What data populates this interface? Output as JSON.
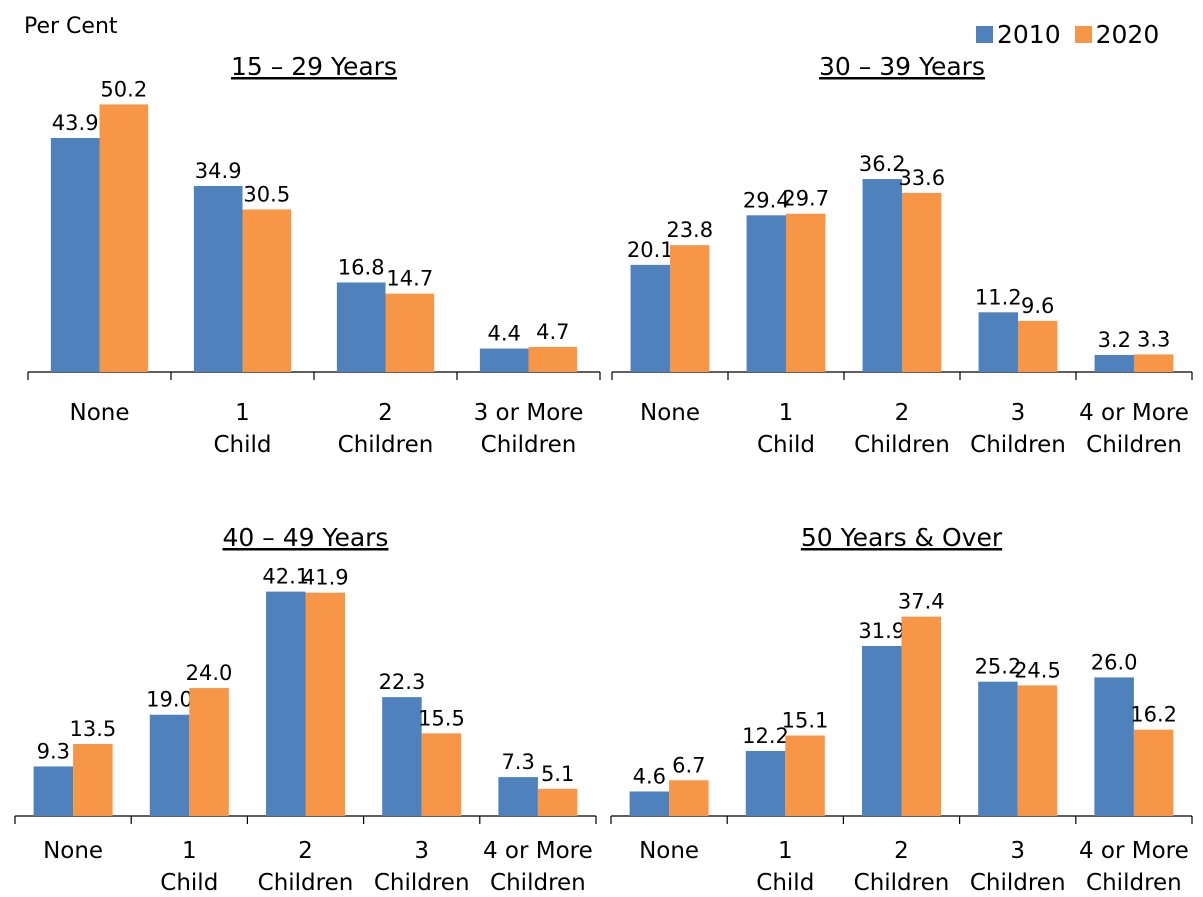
{
  "y_axis_label": "Per Cent",
  "legend": [
    {
      "label": "2010",
      "color": "#4f81bd"
    },
    {
      "label": "2020",
      "color": "#f79646"
    }
  ],
  "chart_data": [
    {
      "type": "bar",
      "title": "15 – 29 Years",
      "categories": [
        [
          "None"
        ],
        [
          "1",
          "Child"
        ],
        [
          "2",
          "Children"
        ],
        [
          "3 or More",
          "Children"
        ]
      ],
      "series": [
        {
          "name": "2010",
          "values": [
            43.9,
            34.9,
            16.8,
            4.4
          ]
        },
        {
          "name": "2020",
          "values": [
            50.2,
            30.5,
            14.7,
            4.7
          ]
        }
      ],
      "ylim": [
        0,
        55
      ]
    },
    {
      "type": "bar",
      "title": "30 – 39 Years",
      "categories": [
        [
          "None"
        ],
        [
          "1",
          "Child"
        ],
        [
          "2",
          "Children"
        ],
        [
          "3",
          "Children"
        ],
        [
          "4 or More",
          "Children"
        ]
      ],
      "series": [
        {
          "name": "2010",
          "values": [
            20.1,
            29.4,
            36.2,
            11.2,
            3.2
          ]
        },
        {
          "name": "2020",
          "values": [
            23.8,
            29.7,
            33.6,
            9.6,
            3.3
          ]
        }
      ],
      "ylim": [
        0,
        55
      ]
    },
    {
      "type": "bar",
      "title": "40 – 49 Years",
      "categories": [
        [
          "None"
        ],
        [
          "1",
          "Child"
        ],
        [
          "2",
          "Children"
        ],
        [
          "3",
          "Children"
        ],
        [
          "4 or More",
          "Children"
        ]
      ],
      "series": [
        {
          "name": "2010",
          "values": [
            9.3,
            19.0,
            42.1,
            22.3,
            7.3
          ]
        },
        {
          "name": "2020",
          "values": [
            13.5,
            24.0,
            41.9,
            15.5,
            5.1
          ]
        }
      ],
      "ylim": [
        0,
        55
      ]
    },
    {
      "type": "bar",
      "title": "50 Years & Over",
      "categories": [
        [
          "None"
        ],
        [
          "1",
          "Child"
        ],
        [
          "2",
          "Children"
        ],
        [
          "3",
          "Children"
        ],
        [
          "4 or More",
          "Children"
        ]
      ],
      "series": [
        {
          "name": "2010",
          "values": [
            4.6,
            12.2,
            31.9,
            25.2,
            26.0
          ]
        },
        {
          "name": "2020",
          "values": [
            6.7,
            15.1,
            37.4,
            24.5,
            16.2
          ]
        }
      ],
      "ylim": [
        0,
        55
      ]
    }
  ]
}
